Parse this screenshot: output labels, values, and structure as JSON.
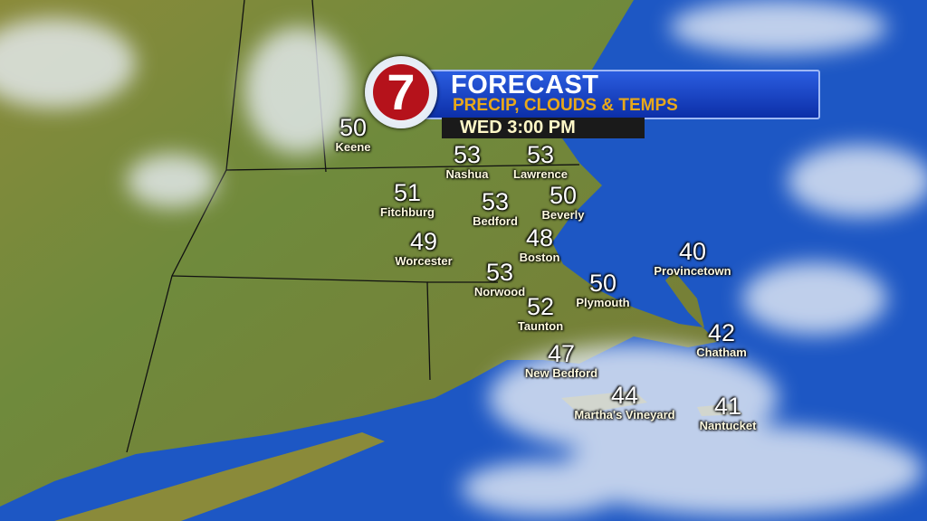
{
  "header": {
    "logo_text": "7",
    "title": "FORECAST",
    "subtitle": "PRECIP, CLOUDS & TEMPS",
    "time": "WED 3:00 PM"
  },
  "colors": {
    "ocean": "#1d57c4",
    "land": "#6f8a3c",
    "banner": "#1b45c8",
    "subtitle": "#e8a81a",
    "logo_red": "#b5121b"
  },
  "cities": [
    {
      "name": "Keene",
      "temp": "50"
    },
    {
      "name": "Nashua",
      "temp": "53"
    },
    {
      "name": "Lawrence",
      "temp": "53"
    },
    {
      "name": "Fitchburg",
      "temp": "51"
    },
    {
      "name": "Bedford",
      "temp": "53"
    },
    {
      "name": "Beverly",
      "temp": "50"
    },
    {
      "name": "Worcester",
      "temp": "49"
    },
    {
      "name": "Boston",
      "temp": "48"
    },
    {
      "name": "Provincetown",
      "temp": "40"
    },
    {
      "name": "Norwood",
      "temp": "53"
    },
    {
      "name": "Plymouth",
      "temp": "50"
    },
    {
      "name": "Taunton",
      "temp": "52"
    },
    {
      "name": "Chatham",
      "temp": "42"
    },
    {
      "name": "New Bedford",
      "temp": "47"
    },
    {
      "name": "Martha's Vineyard",
      "temp": "44"
    },
    {
      "name": "Nantucket",
      "temp": "41"
    }
  ]
}
